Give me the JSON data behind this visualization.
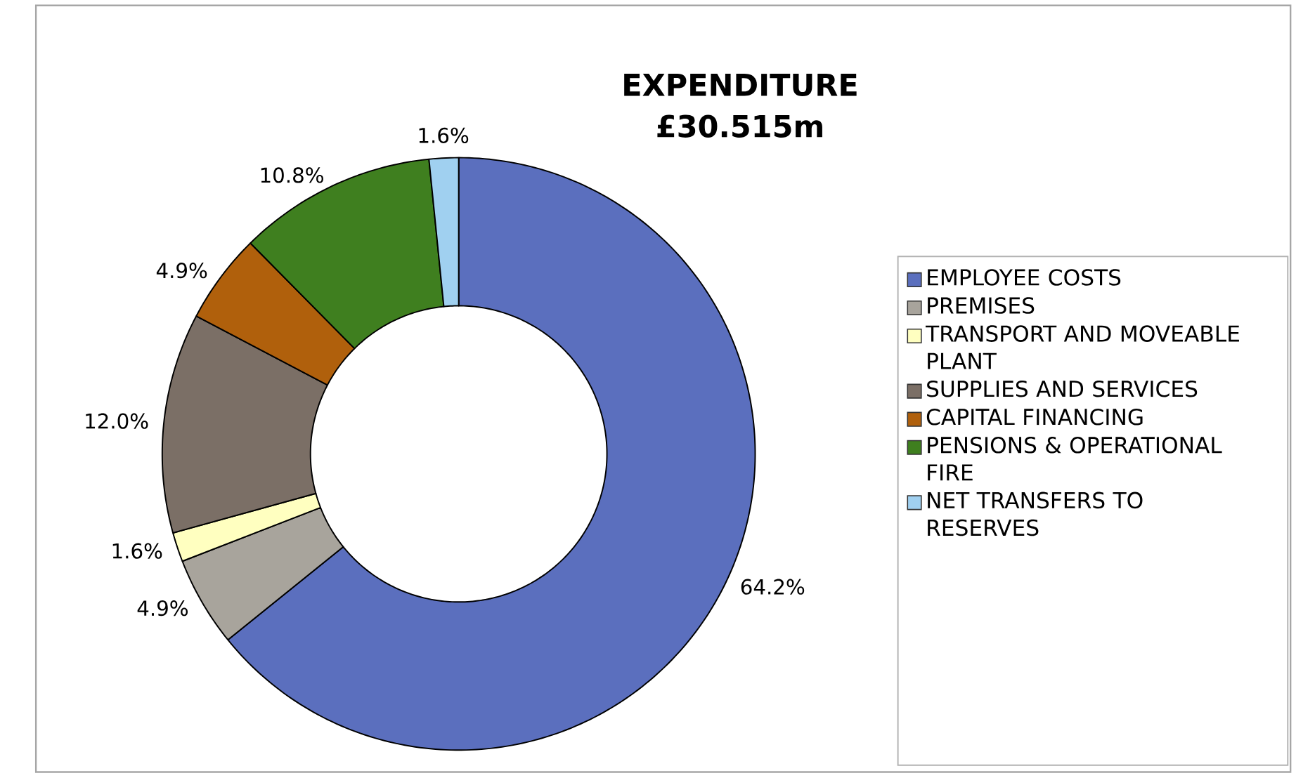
{
  "chart_data": {
    "type": "donut",
    "title": "EXPENDITURE",
    "subtitle": "£30.515m",
    "categories": [
      "EMPLOYEE COSTS",
      "PREMISES",
      "TRANSPORT AND MOVEABLE PLANT",
      "SUPPLIES AND SERVICES",
      "CAPITAL FINANCING",
      "PENSIONS & OPERATIONAL FIRE",
      "NET TRANSFERS TO RESERVES"
    ],
    "values": [
      64.2,
      4.9,
      1.6,
      12.0,
      4.9,
      10.8,
      1.6
    ],
    "value_labels": [
      "64.2%",
      "4.9%",
      "1.6%",
      "12.0%",
      "4.9%",
      "10.8%",
      "1.6%"
    ],
    "colors": [
      "#5b6fbe",
      "#a8a49c",
      "#ffffc0",
      "#7b6f66",
      "#b0600c",
      "#3f7f1f",
      "#a0d0f0"
    ],
    "legend": "right"
  }
}
